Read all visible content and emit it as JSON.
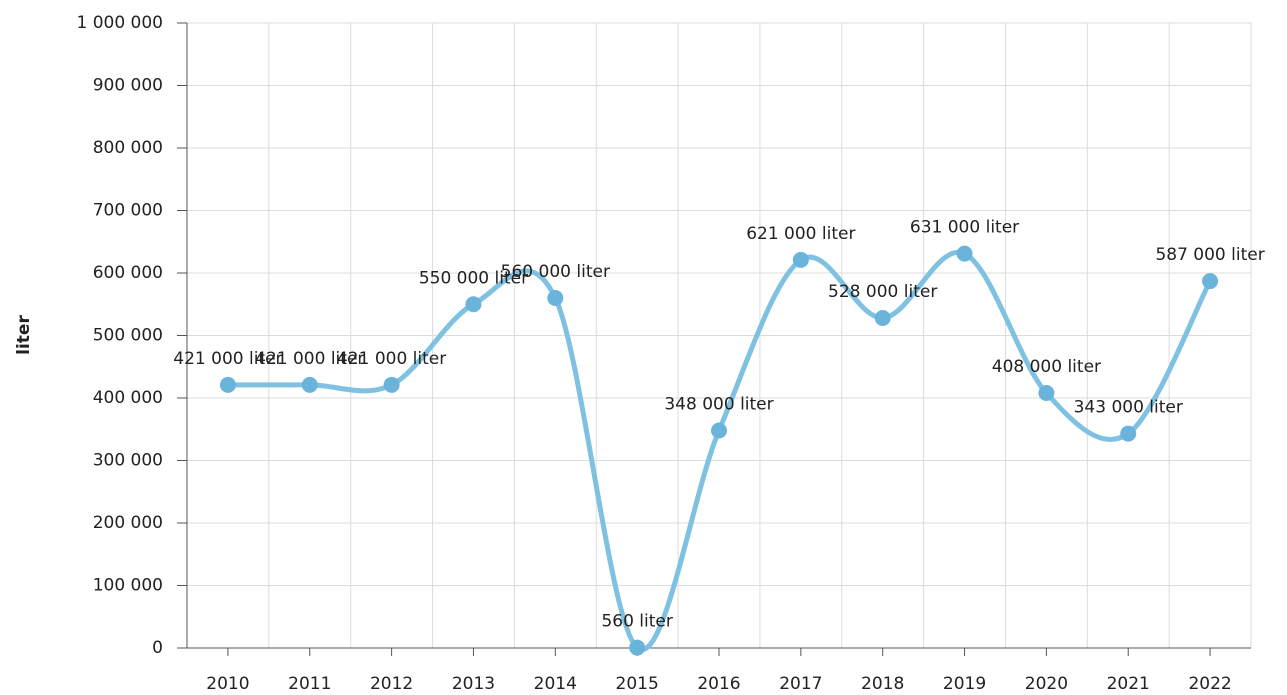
{
  "chart_data": {
    "type": "line",
    "y_label": "liter",
    "categories": [
      "2010",
      "2011",
      "2012",
      "2013",
      "2014",
      "2015",
      "2016",
      "2017",
      "2018",
      "2019",
      "2020",
      "2021",
      "2022"
    ],
    "series": [
      {
        "name": "liter",
        "color": "#7fc1e0",
        "values": [
          421000,
          421000,
          421000,
          550000,
          560000,
          560,
          348000,
          621000,
          528000,
          631000,
          408000,
          343000,
          587000
        ],
        "value_labels": [
          "421 000 liter",
          "421 000 liter",
          "421 000 liter",
          "550 000 liter",
          "560 000 liter",
          "560 liter",
          "348 000 liter",
          "621 000 liter",
          "528 000 liter",
          "631 000 liter",
          "408 000 liter",
          "343 000 liter",
          "587 000 liter"
        ]
      }
    ],
    "ylim": [
      0,
      1000000
    ],
    "yticks": [
      0,
      {
        "value": 100000,
        "label": "100 000"
      },
      {
        "value": 200000,
        "label": "200 000"
      },
      {
        "value": 300000,
        "label": "300 000"
      },
      {
        "value": 400000,
        "label": "400 000"
      },
      {
        "value": 500000,
        "label": "500 000"
      },
      {
        "value": 600000,
        "label": "600 000"
      },
      {
        "value": 700000,
        "label": "700 000"
      },
      {
        "value": 800000,
        "label": "800 000"
      },
      {
        "value": 900000,
        "label": "900 000"
      },
      {
        "value": 1000000,
        "label": "1 000 000"
      }
    ],
    "grid": true
  }
}
